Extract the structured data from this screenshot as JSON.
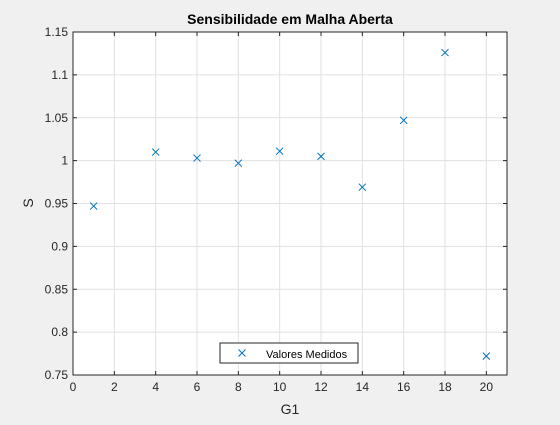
{
  "chart_data": {
    "type": "scatter",
    "title": "Sensibilidade em Malha Aberta",
    "xlabel": "G1",
    "ylabel": "S",
    "xlim": [
      0,
      21
    ],
    "ylim": [
      0.75,
      1.15
    ],
    "xticks": [
      0,
      2,
      4,
      6,
      8,
      10,
      12,
      14,
      16,
      18,
      20
    ],
    "xtick_labels": [
      "0",
      "2",
      "4",
      "6",
      "8",
      "10",
      "12",
      "14",
      "16",
      "18",
      "20"
    ],
    "yticks": [
      0.75,
      0.8,
      0.85,
      0.9,
      0.95,
      1.0,
      1.05,
      1.1,
      1.15
    ],
    "ytick_labels": [
      "0.75",
      "0.8",
      "0.85",
      "0.9",
      "0.95",
      "1",
      "1.05",
      "1.1",
      "1.15"
    ],
    "grid": true,
    "legend_position": "bottom-center",
    "marker": "x",
    "series": [
      {
        "name": "Valores Medidos",
        "color": "#0072bd",
        "x": [
          1,
          4,
          6,
          8,
          10,
          12,
          14,
          16,
          18,
          20
        ],
        "y": [
          0.947,
          1.01,
          1.003,
          0.997,
          1.011,
          1.005,
          0.969,
          1.047,
          1.126,
          0.772
        ]
      }
    ]
  }
}
